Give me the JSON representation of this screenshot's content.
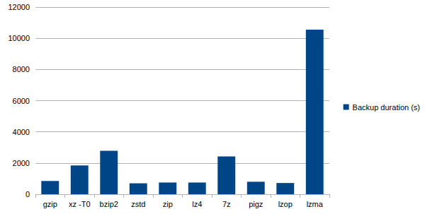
{
  "chart_data": {
    "type": "bar",
    "categories": [
      "gzip",
      "xz -T0",
      "bzip2",
      "zstd",
      "zip",
      "lz4",
      "7z",
      "pigz",
      "lzop",
      "lzma"
    ],
    "series": [
      {
        "name": "Backup duration (s)",
        "color": "#004586",
        "values": [
          850,
          1850,
          2780,
          700,
          750,
          750,
          2420,
          800,
          720,
          10550
        ]
      }
    ],
    "ylim": [
      0,
      12000
    ],
    "yticks": [
      0,
      2000,
      4000,
      6000,
      8000,
      10000,
      12000
    ],
    "grid": true,
    "legend": "right"
  }
}
